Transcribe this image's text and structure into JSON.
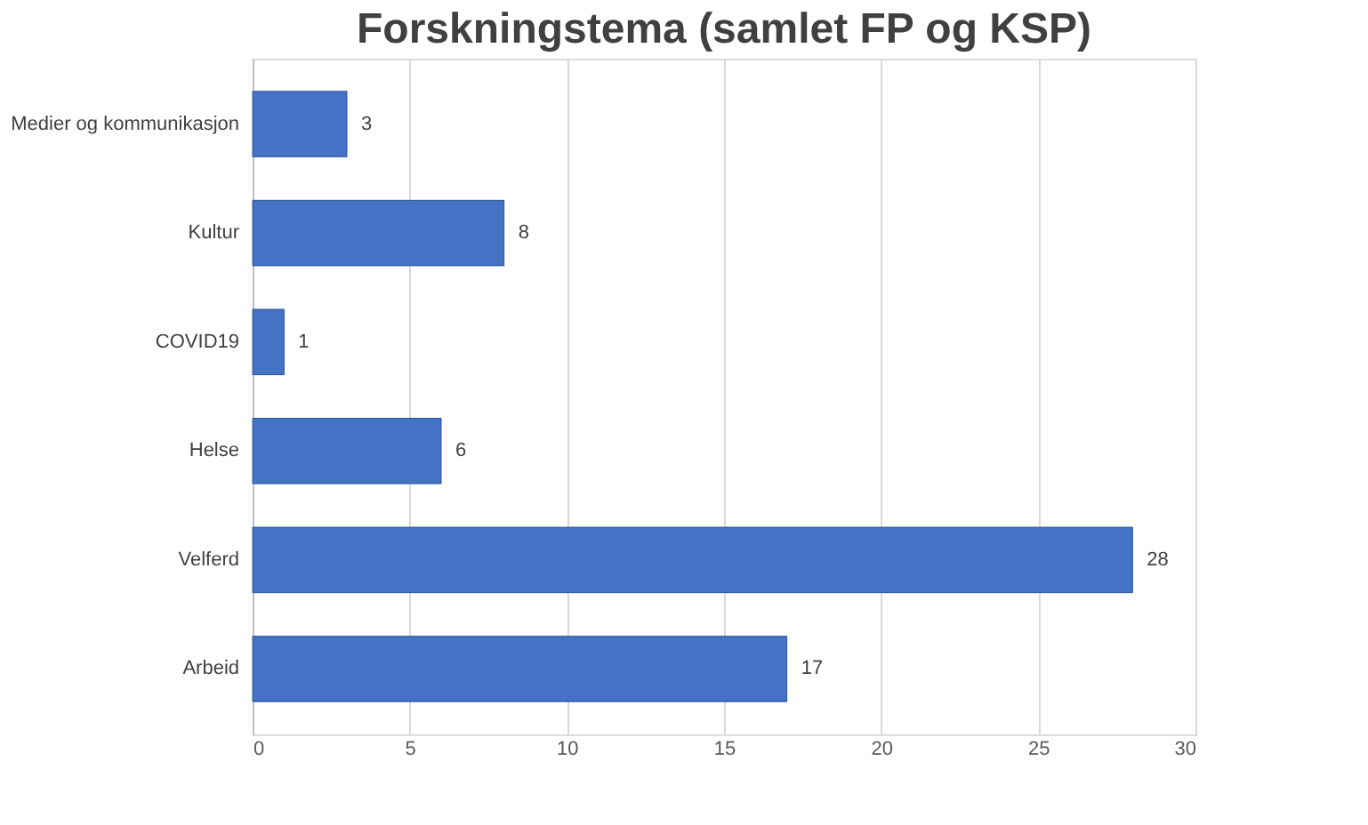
{
  "chart_data": {
    "type": "bar",
    "orientation": "horizontal",
    "title": "Forskningstema (samlet FP og KSP)",
    "categories": [
      "Medier og kommunikasjon",
      "Kultur",
      "COVID19",
      "Helse",
      "Velferd",
      "Arbeid"
    ],
    "values": [
      3,
      8,
      1,
      6,
      28,
      17
    ],
    "color": "#4472c4",
    "xlim": [
      0,
      30
    ],
    "xticks": [
      0,
      5,
      10,
      15,
      20,
      25,
      30
    ],
    "grid": "x",
    "data_labels": true
  }
}
